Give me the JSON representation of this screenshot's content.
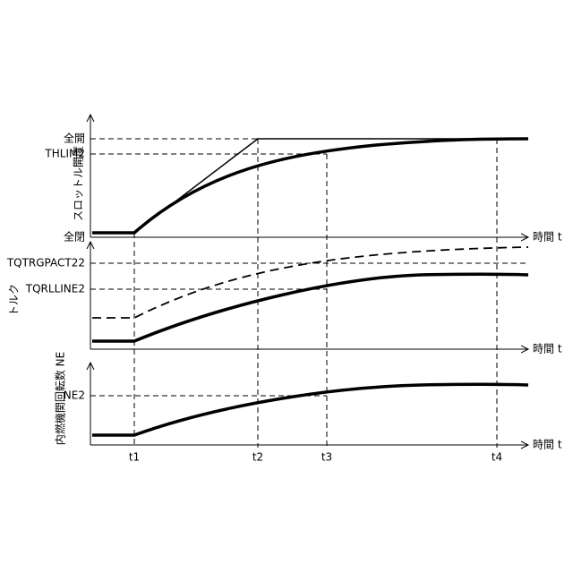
{
  "panels": [
    {
      "ylabel": "スロットル開度",
      "xlabel": "時間 t",
      "levels": [
        "全開",
        "THLIM2",
        "全閉"
      ]
    },
    {
      "ylabel": "トルク",
      "xlabel": "時間 t",
      "levels": [
        "TQTRGPACT22",
        "TQRLLINE2"
      ]
    },
    {
      "ylabel": "内燃機関回転数 NE",
      "xlabel": "時間 t",
      "levels": [
        "NE2"
      ]
    }
  ],
  "times": [
    "t1",
    "t2",
    "t3",
    "t4"
  ]
}
